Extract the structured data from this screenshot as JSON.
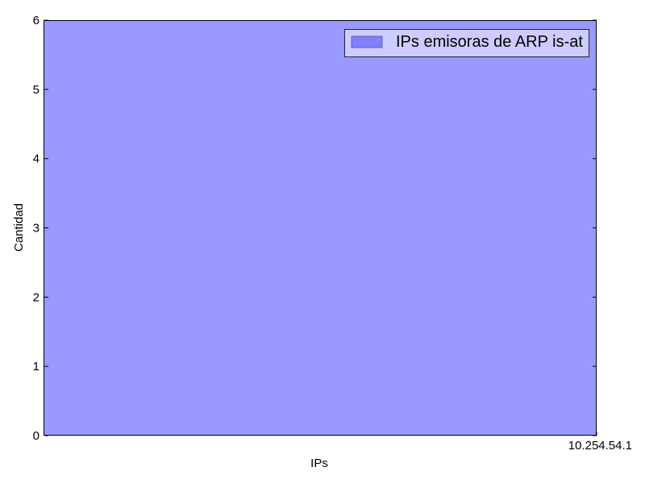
{
  "chart_data": {
    "type": "bar",
    "categories": [
      "10.254.54.1"
    ],
    "series": [
      {
        "name": "IPs emisoras de ARP is-at",
        "values": [
          6
        ]
      }
    ],
    "title": "",
    "xlabel": "IPs",
    "ylabel": "Cantidad",
    "ylim": [
      0,
      6
    ],
    "yticks": [
      0,
      1,
      2,
      3,
      4,
      5,
      6
    ],
    "grid": false,
    "legend_position": "top-right",
    "colors": {
      "bar_fill": "#9999ff",
      "legend_patch": "#8080ff",
      "legend_background": "#ccccff",
      "axes": "#000000"
    }
  }
}
